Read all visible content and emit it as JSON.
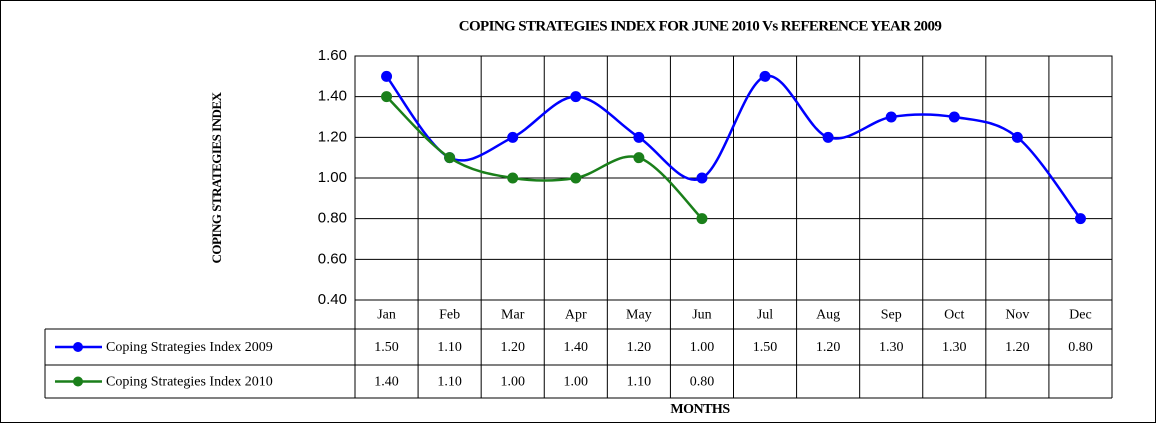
{
  "chart_data": {
    "type": "line",
    "title": "COPING STRATEGIES INDEX FOR JUNE 2010 Vs REFERENCE YEAR 2009",
    "y_label": "COPING STRATEGIES INDEX",
    "x_label": "MONTHS",
    "categories": [
      "Jan",
      "Feb",
      "Mar",
      "Apr",
      "May",
      "Jun",
      "Jul",
      "Aug",
      "Sep",
      "Oct",
      "Nov",
      "Dec"
    ],
    "series": [
      {
        "name": "Coping Strategies Index 2009",
        "color": "#0000ff",
        "values": [
          1.5,
          1.1,
          1.2,
          1.4,
          1.2,
          1.0,
          1.5,
          1.2,
          1.3,
          1.3,
          1.2,
          0.8
        ],
        "value_labels": [
          "1.50",
          "1.10",
          "1.20",
          "1.40",
          "1.20",
          "1.00",
          "1.50",
          "1.20",
          "1.30",
          "1.30",
          "1.20",
          "0.80"
        ]
      },
      {
        "name": "Coping Strategies Index 2010",
        "color": "#1a7f1a",
        "values": [
          1.4,
          1.1,
          1.0,
          1.0,
          1.1,
          0.8,
          null,
          null,
          null,
          null,
          null,
          null
        ],
        "value_labels": [
          "1.40",
          "1.10",
          "1.00",
          "1.00",
          "1.10",
          "0.80",
          null,
          null,
          null,
          null,
          null,
          null
        ]
      }
    ],
    "ylim": [
      0.4,
      1.6
    ],
    "yticks": [
      {
        "value": 0.4,
        "label": "0.40"
      },
      {
        "value": 0.6,
        "label": "0.60"
      },
      {
        "value": 0.8,
        "label": "0.80"
      },
      {
        "value": 1.0,
        "label": "1.00"
      },
      {
        "value": 1.2,
        "label": "1.20"
      },
      {
        "value": 1.4,
        "label": "1.40"
      },
      {
        "value": 1.6,
        "label": "1.60"
      }
    ],
    "grid": true,
    "smooth": true
  }
}
